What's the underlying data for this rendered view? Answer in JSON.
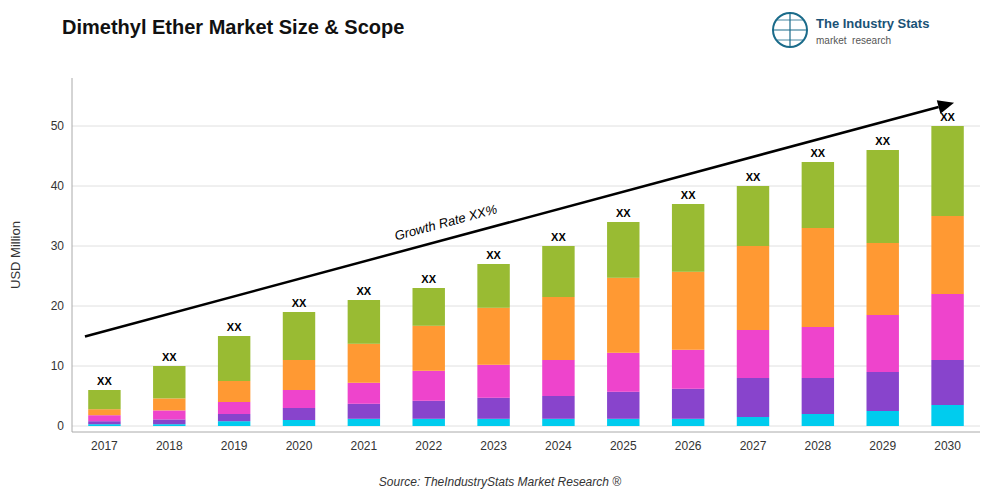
{
  "chart_data": {
    "type": "bar",
    "stacked": true,
    "title": "Dimethyl Ether Market Size & Scope",
    "y_label": "USD Million",
    "categories": [
      "2017",
      "2018",
      "2019",
      "2020",
      "2021",
      "2022",
      "2023",
      "2024",
      "2025",
      "2026",
      "2027",
      "2028",
      "2029",
      "2030"
    ],
    "series": [
      {
        "color": "#00ccee",
        "values": [
          0.3,
          0.3,
          0.8,
          1.0,
          1.2,
          1.2,
          1.2,
          1.2,
          1.2,
          1.2,
          1.5,
          2.0,
          2.5,
          3.5
        ]
      },
      {
        "color": "#8844cc",
        "values": [
          0.5,
          0.8,
          1.2,
          2.0,
          2.5,
          3.0,
          3.5,
          3.8,
          4.5,
          5.0,
          6.5,
          6.0,
          6.5,
          7.5
        ]
      },
      {
        "color": "#ee44cc",
        "values": [
          1.0,
          1.5,
          2.0,
          3.0,
          3.5,
          5.0,
          5.5,
          6.0,
          6.5,
          6.5,
          8.0,
          8.5,
          9.5,
          11.0
        ]
      },
      {
        "color": "#ff9933",
        "values": [
          1.0,
          2.0,
          3.5,
          5.0,
          6.5,
          7.5,
          9.5,
          10.5,
          12.5,
          13.0,
          14.0,
          16.5,
          12.0,
          13.0
        ]
      },
      {
        "color": "#99bb33",
        "values": [
          3.2,
          5.4,
          7.5,
          8.0,
          7.3,
          6.3,
          7.3,
          8.5,
          9.3,
          11.3,
          10.0,
          11.0,
          15.5,
          15.0
        ]
      }
    ],
    "ylim": [
      -1,
      58
    ],
    "yticks": [
      0,
      10,
      20,
      30,
      40,
      50
    ],
    "grid": true,
    "annotations": {
      "bar_label": "XX",
      "growth_label": "Growth Rate XX%",
      "source": "Source: TheIndustryStats Market Research ®",
      "logo_title": "The Industry Stats",
      "logo_subtitle": "market  research"
    }
  }
}
